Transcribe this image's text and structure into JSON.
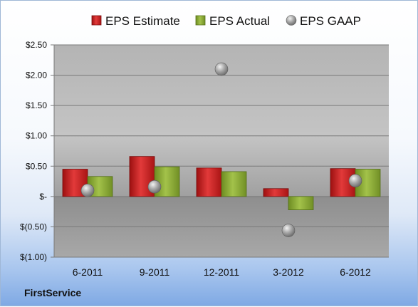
{
  "chart_data": {
    "type": "bar",
    "categories": [
      "6-2011",
      "9-2011",
      "12-2011",
      "3-2012",
      "6-2012"
    ],
    "series": [
      {
        "name": "EPS Estimate",
        "kind": "bar",
        "color": "#cc1f1f",
        "values": [
          0.45,
          0.66,
          0.47,
          0.13,
          0.46
        ]
      },
      {
        "name": "EPS Actual",
        "kind": "bar",
        "color": "#88a832",
        "values": [
          0.33,
          0.49,
          0.41,
          -0.22,
          0.45
        ]
      },
      {
        "name": "EPS GAAP",
        "kind": "marker",
        "color": "#a8a8a8",
        "values": [
          0.1,
          0.16,
          2.1,
          -0.56,
          0.26
        ]
      }
    ],
    "ylim": [
      -1.0,
      2.5
    ],
    "yticks": [
      2.5,
      2.0,
      1.5,
      1.0,
      0.5,
      0,
      -0.5,
      -1.0
    ],
    "ytick_labels": [
      "$2.50",
      "$2.00",
      "$1.50",
      "$1.00",
      "$0.50",
      "$-",
      "$(0.50)",
      "$(1.00)"
    ],
    "grid": true,
    "legend_position": "top",
    "title": "",
    "xlabel": "",
    "ylabel": ""
  },
  "brand": "FirstService"
}
